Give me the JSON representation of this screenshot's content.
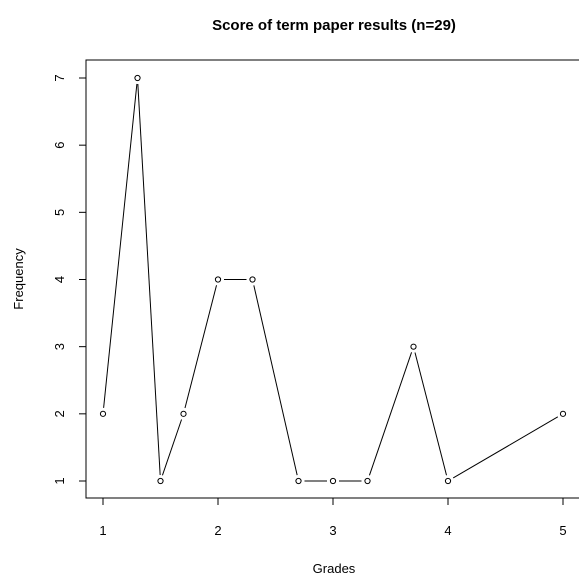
{
  "chart_data": {
    "type": "line",
    "title": "Score of term paper results (n=29)",
    "xlabel": "Grades",
    "ylabel": "Frequency",
    "xlim": [
      1,
      5
    ],
    "ylim": [
      1,
      7
    ],
    "x_ticks": [
      1,
      2,
      3,
      4,
      5
    ],
    "y_ticks": [
      1,
      2,
      3,
      4,
      5,
      6,
      7
    ],
    "grid": false,
    "marker": "open-circle",
    "line_color": "#000000",
    "series": [
      {
        "x": [
          1.0,
          1.3,
          1.5,
          1.7,
          2.0,
          2.3,
          2.7,
          3.0,
          3.3,
          3.7,
          4.0,
          5.0
        ],
        "y": [
          2,
          7,
          1,
          2,
          4,
          4,
          1,
          1,
          1,
          3,
          1,
          2
        ]
      }
    ]
  }
}
